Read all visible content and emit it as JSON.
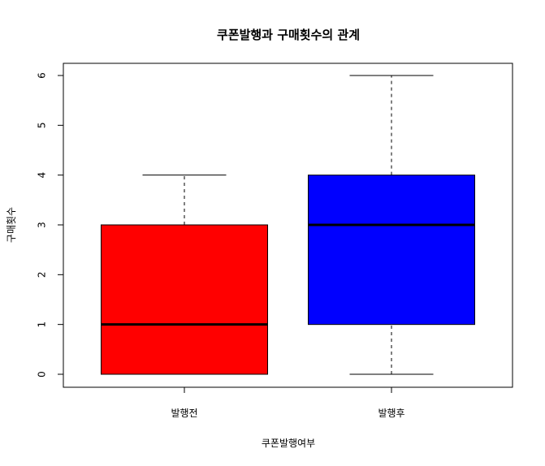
{
  "chart_data": {
    "type": "boxplot",
    "title": "쿠폰발행과 구매횟수의 관계",
    "xlabel": "쿠폰발행여부",
    "ylabel": "구매횟수",
    "ylim": [
      0,
      6
    ],
    "yticks": [
      "0",
      "1",
      "2",
      "3",
      "4",
      "5",
      "6"
    ],
    "categories": [
      "발행전",
      "발행후"
    ],
    "boxes": [
      {
        "category": "발행전",
        "color": "#ff0000",
        "min": 0,
        "q1": 0,
        "median": 1,
        "q3": 3,
        "max": 4
      },
      {
        "category": "발행후",
        "color": "#0000ff",
        "min": 0,
        "q1": 1,
        "median": 3,
        "q3": 4,
        "max": 6
      }
    ],
    "grid": false,
    "legend": false
  }
}
